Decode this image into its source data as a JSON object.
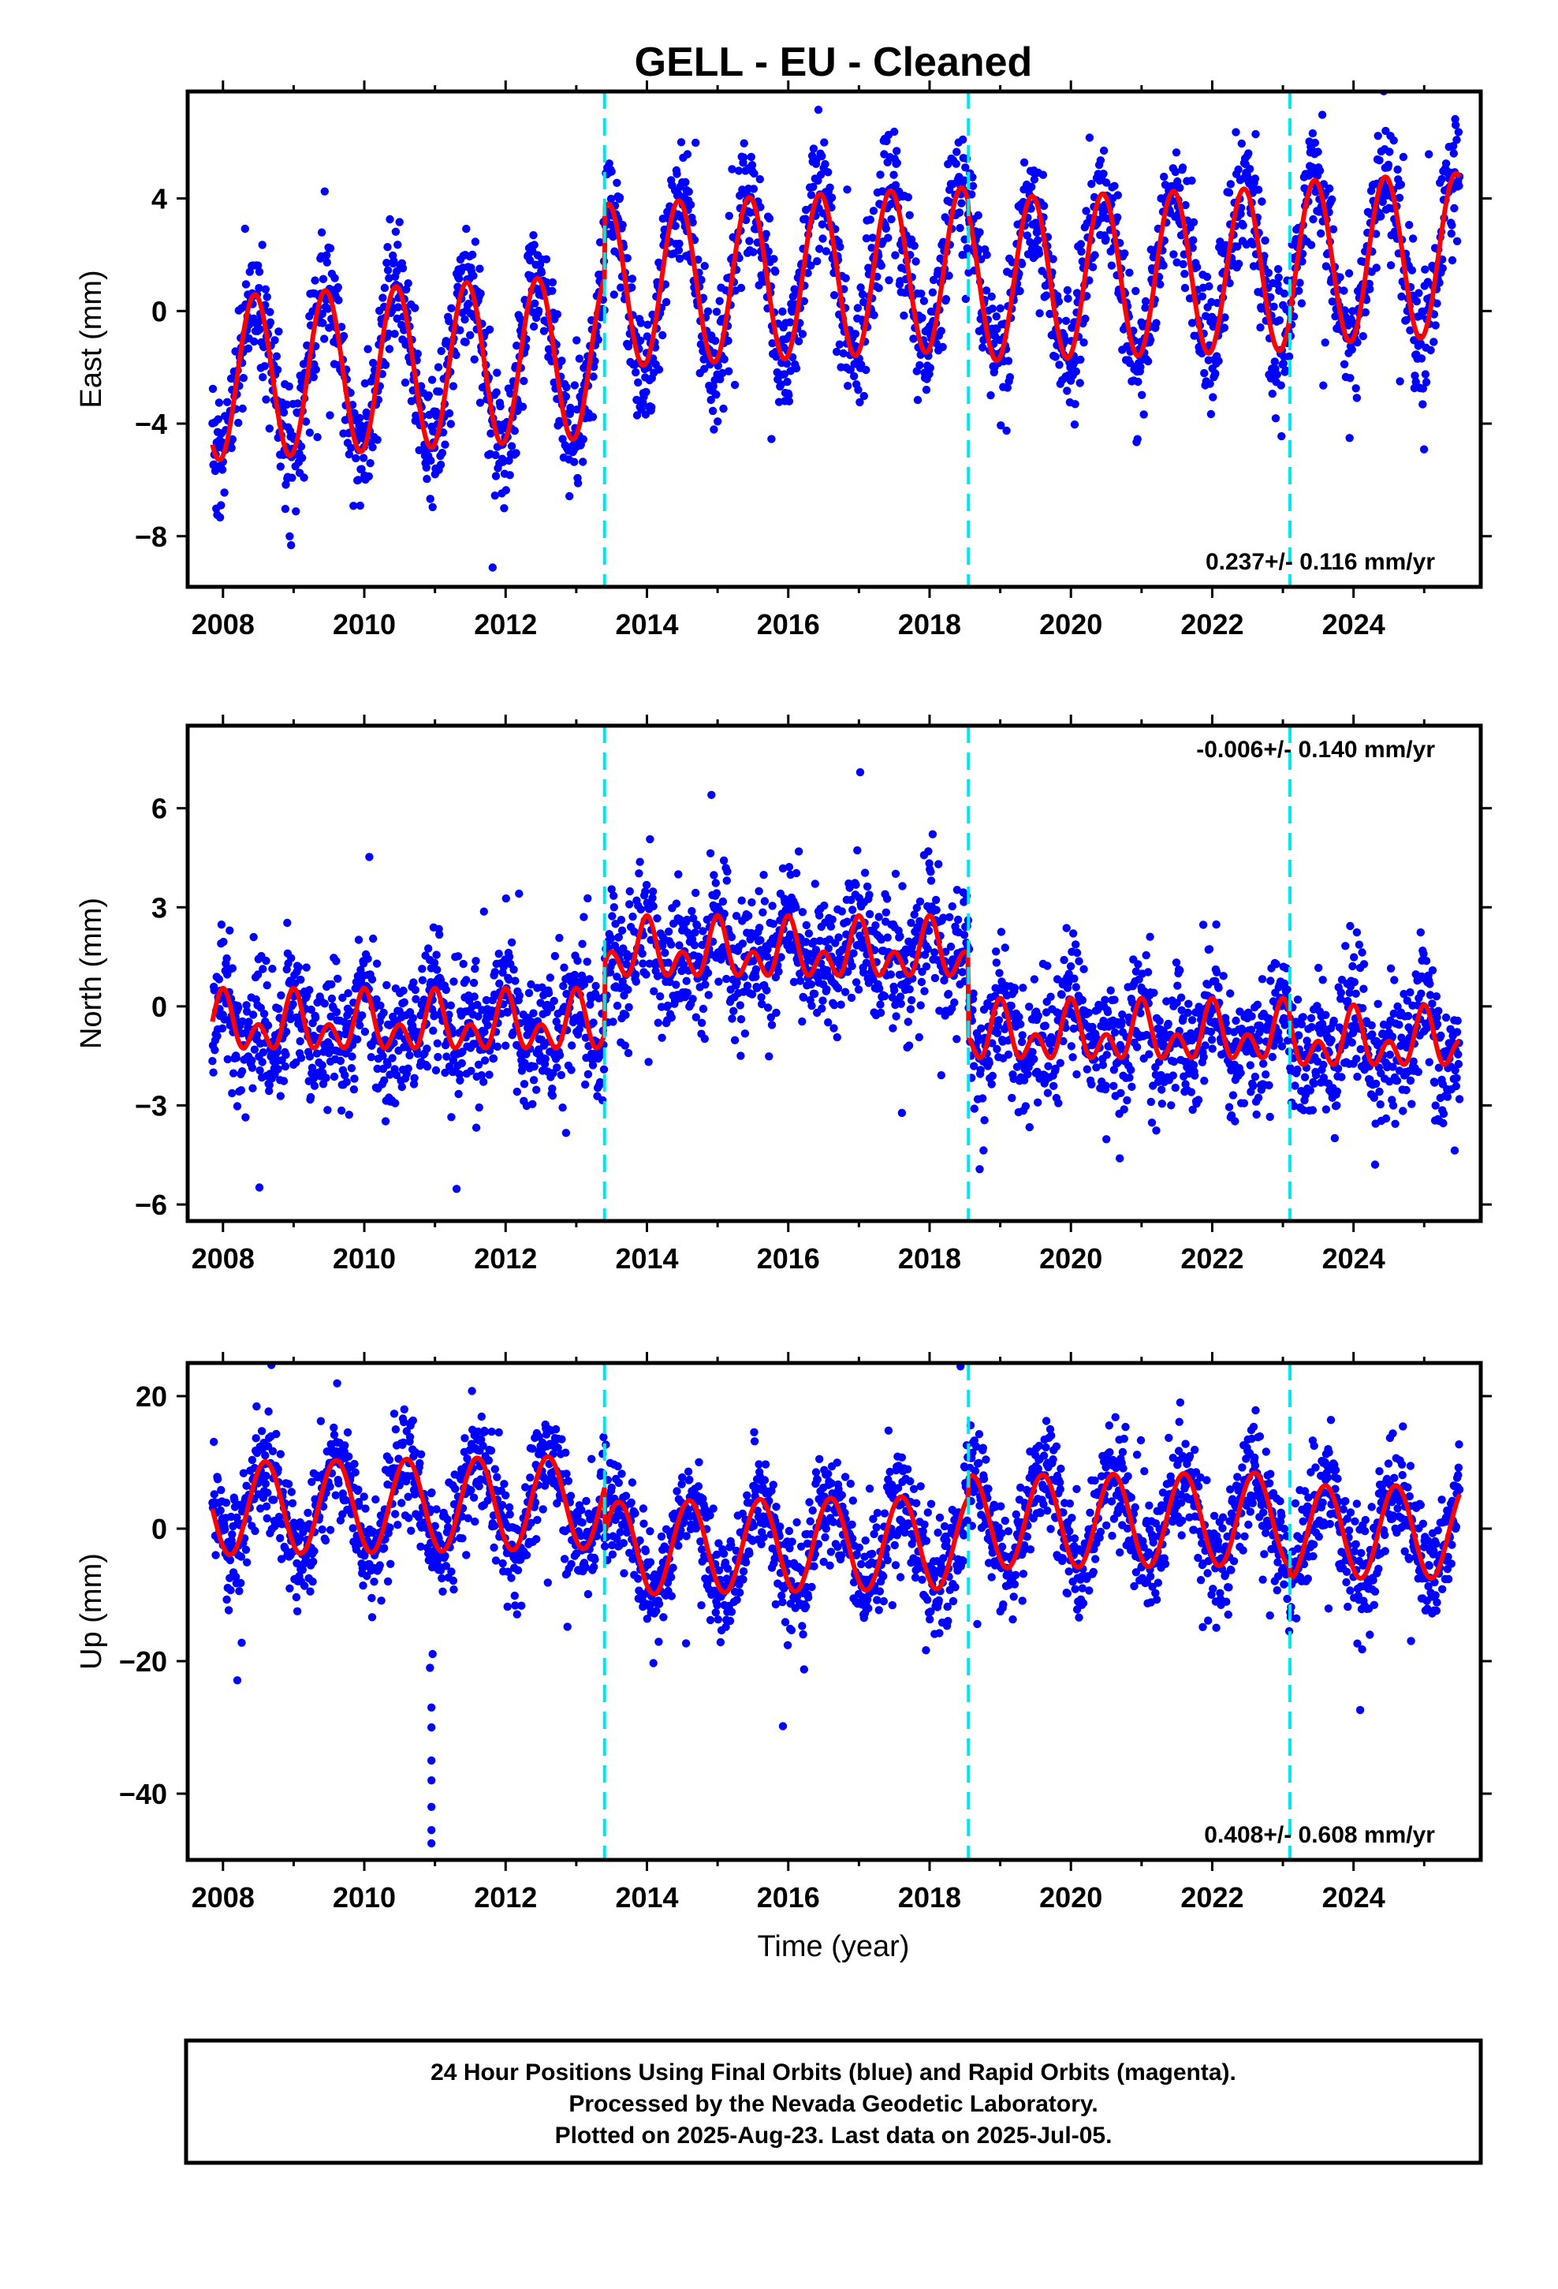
{
  "title": "GELL  - EU - Cleaned",
  "xlabel": "Time (year)",
  "footer": {
    "line1": "24 Hour Positions Using Final Orbits (blue) and Rapid Orbits (magenta).",
    "line2": "Processed by the Nevada Geodetic Laboratory.",
    "line3": "Plotted on 2025-Aug-23. Last data on 2025-Jul-05."
  },
  "colors": {
    "final_orbit_points": "#0000ff",
    "rapid_orbit_points": "#ff00ff",
    "model_fit": "#ff0000",
    "step_lines": "#00e5ee",
    "frame": "#000000"
  },
  "chart_data": [
    {
      "type": "scatter",
      "component": "East",
      "ylabel": "East (mm)",
      "rate_text": "0.237+/- 0.116 mm/yr",
      "rate_position": "bottom-right",
      "xlim": [
        2007.5,
        2025.8
      ],
      "ylim": [
        -9.8,
        7.8
      ],
      "x_ticks": [
        2008,
        2010,
        2012,
        2014,
        2016,
        2018,
        2020,
        2022,
        2024
      ],
      "y_ticks": [
        -8,
        -4,
        0,
        4
      ],
      "step_epochs": [
        2013.4,
        2018.55,
        2023.1
      ],
      "data_span": [
        2007.85,
        2025.5
      ],
      "series": [
        {
          "name": "Final Orbits (blue)",
          "model": {
            "segments": [
              {
                "start": 2007.85,
                "end": 2013.4,
                "offset_start": -2.4,
                "offset_end": -1.6
              },
              {
                "start": 2013.4,
                "end": 2018.55,
                "offset_start": 0.9,
                "offset_end": 1.5
              },
              {
                "start": 2018.55,
                "end": 2023.1,
                "offset_start": 1.1,
                "offset_end": 1.5
              },
              {
                "start": 2023.1,
                "end": 2025.5,
                "offset_start": 1.7,
                "offset_end": 2.0
              }
            ],
            "annual_amplitude": 2.9,
            "annual_peak_phase": 0.45,
            "semiannual_amplitude": 0.0,
            "semiannual_peak_phase": 0.0,
            "scatter": 1.1
          }
        }
      ]
    },
    {
      "type": "scatter",
      "component": "North",
      "ylabel": "North (mm)",
      "rate_text": "-0.006+/- 0.140 mm/yr",
      "rate_position": "top-right",
      "xlim": [
        2007.5,
        2025.8
      ],
      "ylim": [
        -6.5,
        8.5
      ],
      "x_ticks": [
        2008,
        2010,
        2012,
        2014,
        2016,
        2018,
        2020,
        2022,
        2024
      ],
      "y_ticks": [
        -6,
        -3,
        0,
        3,
        6
      ],
      "step_epochs": [
        2013.4,
        2018.55,
        2023.1
      ],
      "data_span": [
        2007.85,
        2025.5
      ],
      "series": [
        {
          "name": "Final Orbits (blue)",
          "model": {
            "segments": [
              {
                "start": 2007.85,
                "end": 2013.4,
                "offset_start": -0.6,
                "offset_end": -0.6
              },
              {
                "start": 2013.4,
                "end": 2018.55,
                "offset_start": 1.6,
                "offset_end": 1.6
              },
              {
                "start": 2018.55,
                "end": 2023.1,
                "offset_start": -0.9,
                "offset_end": -0.9
              },
              {
                "start": 2023.1,
                "end": 2025.5,
                "offset_start": -1.1,
                "offset_end": -1.1
              }
            ],
            "annual_amplitude": 0.55,
            "annual_peak_phase": 0.0,
            "semiannual_amplitude": 0.6,
            "semiannual_peak_phase": 0.0,
            "scatter": 1.0
          }
        }
      ]
    },
    {
      "type": "scatter",
      "component": "Up",
      "ylabel": "Up (mm)",
      "rate_text": "0.408+/- 0.608 mm/yr",
      "rate_position": "bottom-right",
      "xlim": [
        2007.5,
        2025.8
      ],
      "ylim": [
        -50,
        25
      ],
      "x_ticks": [
        2008,
        2010,
        2012,
        2014,
        2016,
        2018,
        2020,
        2022,
        2024
      ],
      "y_ticks": [
        -40,
        -20,
        0,
        20
      ],
      "step_epochs": [
        2013.4,
        2018.55,
        2023.1
      ],
      "data_span": [
        2007.85,
        2025.5
      ],
      "series": [
        {
          "name": "Final Orbits (blue)",
          "model": {
            "segments": [
              {
                "start": 2007.85,
                "end": 2013.4,
                "offset_start": 3.0,
                "offset_end": 4.0
              },
              {
                "start": 2013.4,
                "end": 2018.55,
                "offset_start": -3.0,
                "offset_end": -2.0
              },
              {
                "start": 2018.55,
                "end": 2023.1,
                "offset_start": 1.0,
                "offset_end": 1.5
              },
              {
                "start": 2023.1,
                "end": 2025.5,
                "offset_start": -0.5,
                "offset_end": -0.5
              }
            ],
            "annual_amplitude": 7.0,
            "annual_peak_phase": 0.6,
            "semiannual_amplitude": 0.0,
            "semiannual_peak_phase": 0.0,
            "scatter": 4.2,
            "outliers": [
              {
                "x": 2010.95,
                "y": -47.5
              },
              {
                "x": 2010.95,
                "y": -45.5
              },
              {
                "x": 2010.95,
                "y": -42.0
              },
              {
                "x": 2010.95,
                "y": -38.0
              },
              {
                "x": 2010.95,
                "y": -35.0
              },
              {
                "x": 2010.95,
                "y": -30.0
              },
              {
                "x": 2010.95,
                "y": -27.0
              },
              {
                "x": 2010.93,
                "y": -21.0
              }
            ]
          }
        }
      ]
    }
  ]
}
